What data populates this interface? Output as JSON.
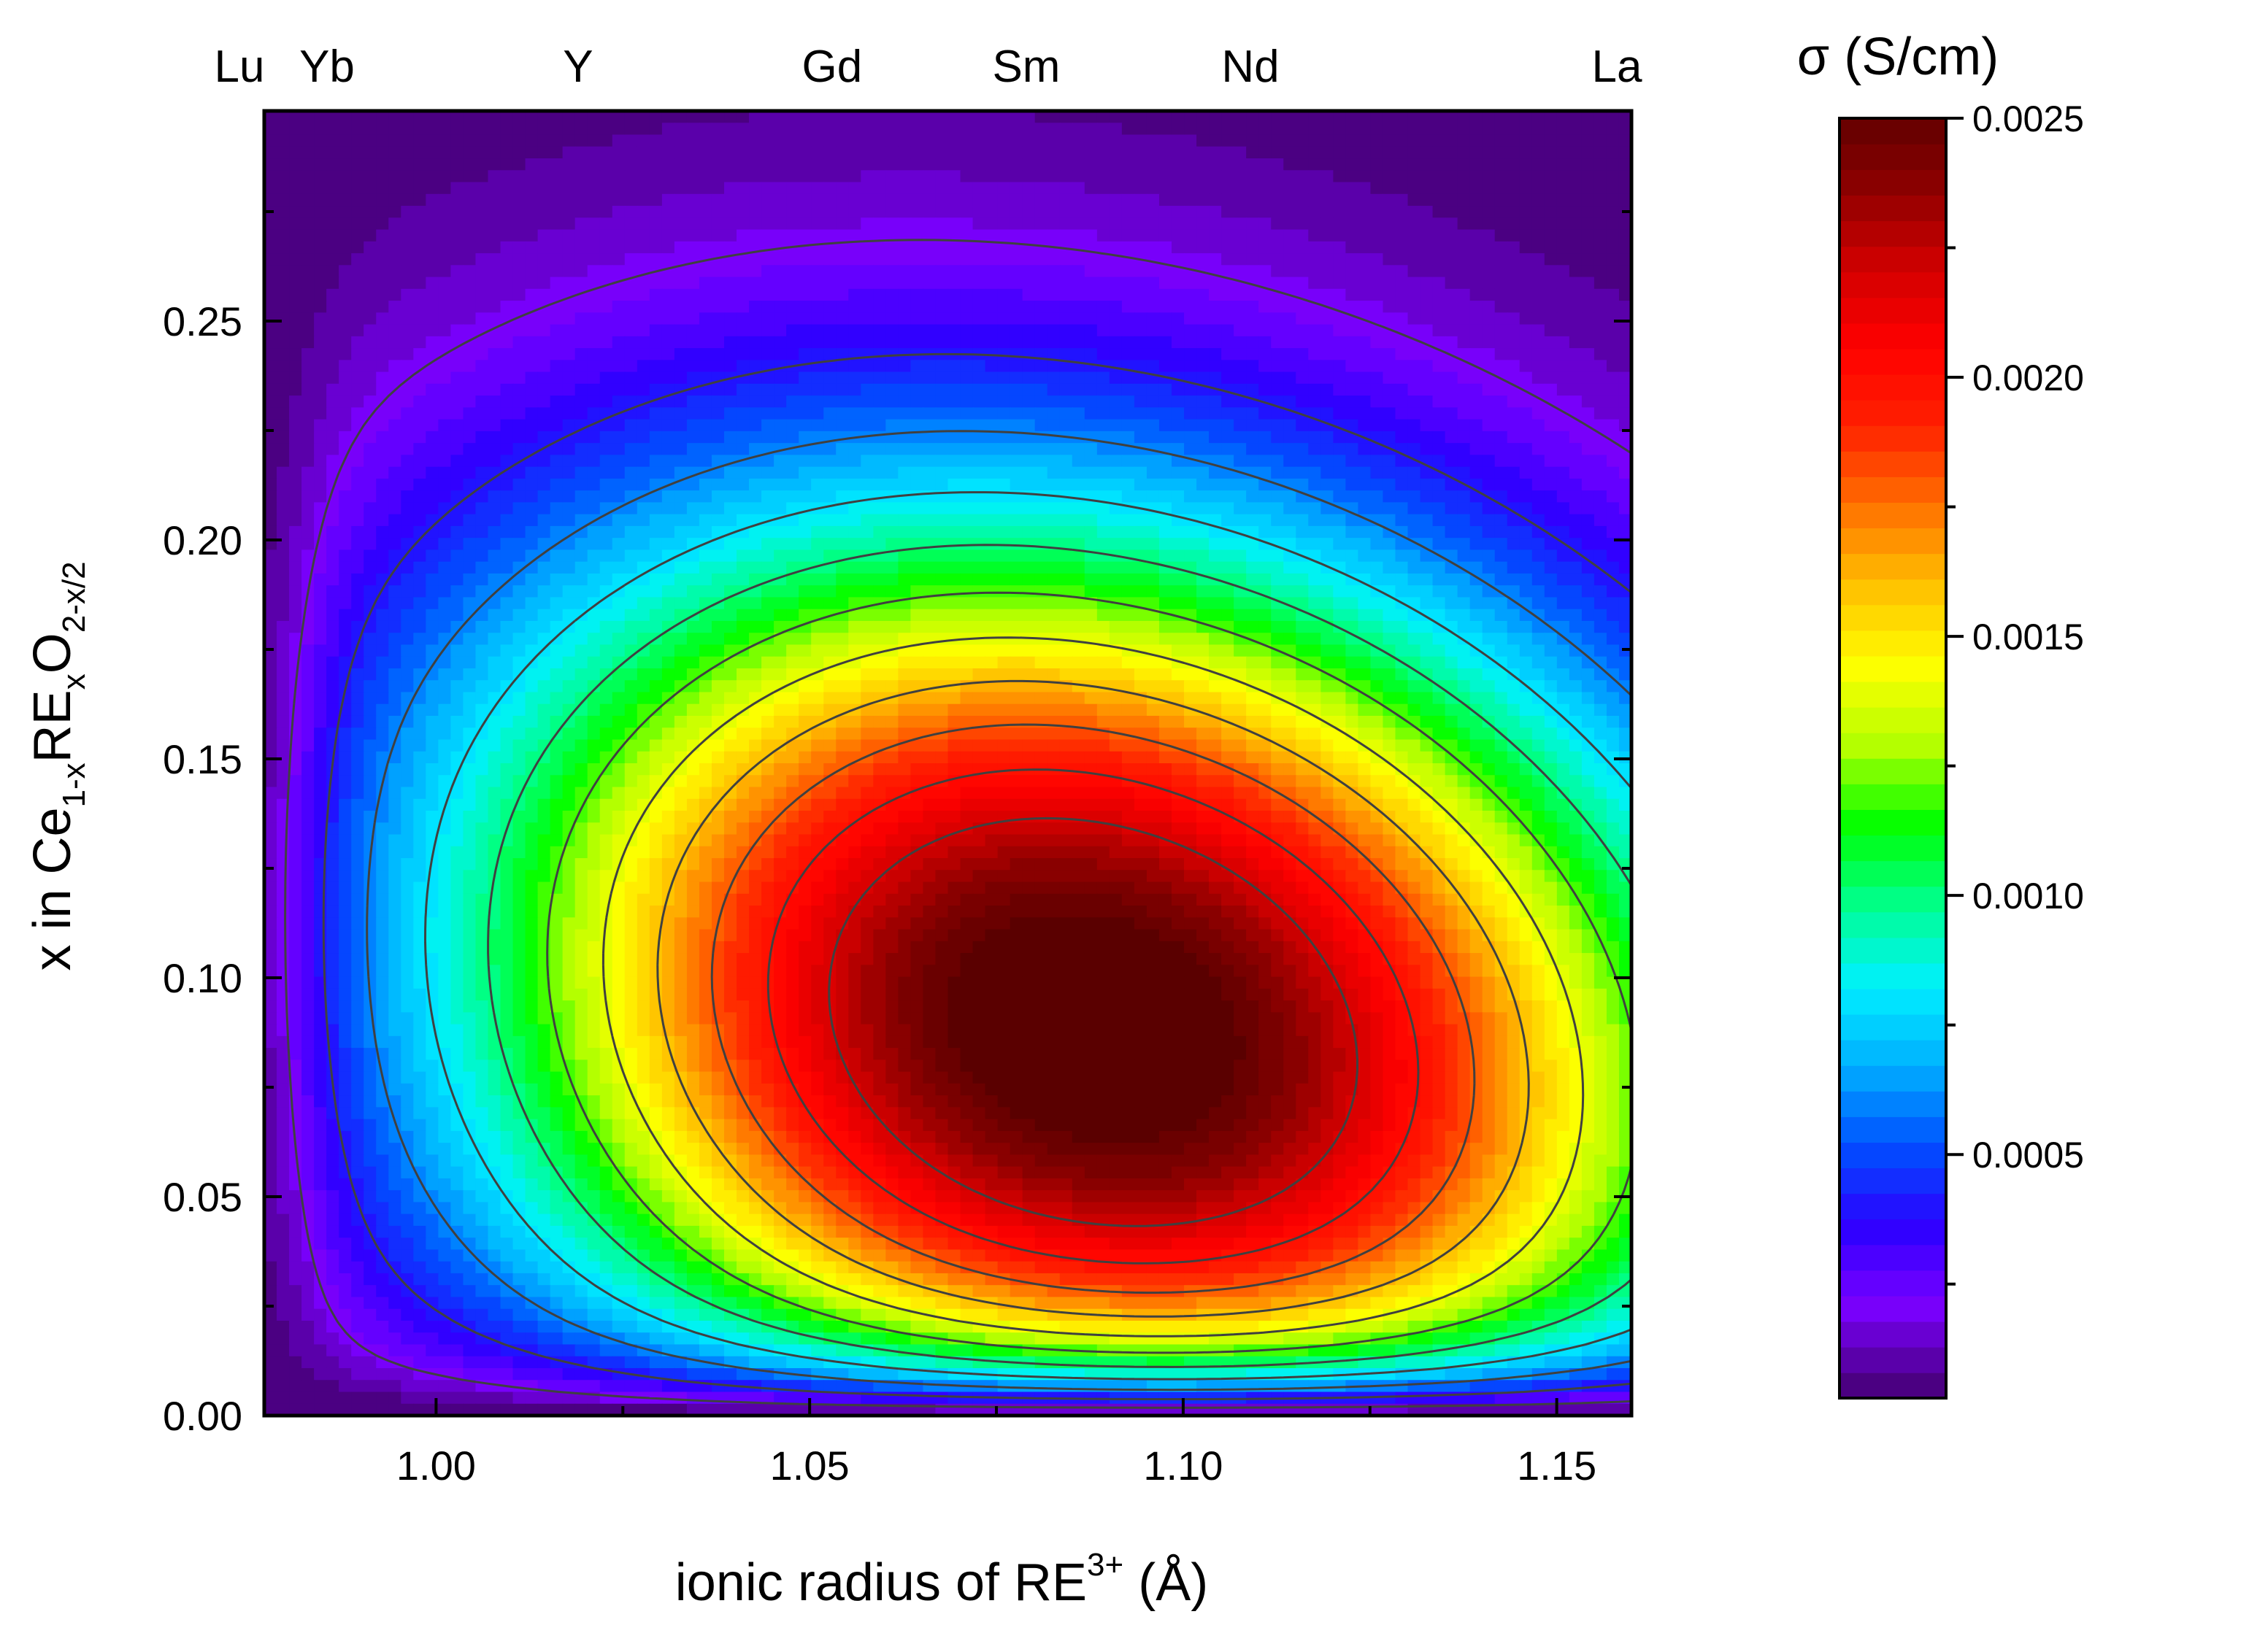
{
  "chart_data": {
    "type": "heatmap",
    "title": "",
    "xlabel": {
      "main": "ionic radius of RE",
      "superscript": "3+",
      "unit": " (Å)"
    },
    "ylabel": {
      "prefix": "x in Ce",
      "sub1": "1-x",
      "mid": "RE",
      "sub2": "x",
      "mid2": "O",
      "sub3": "2-x/2"
    },
    "xlim": [
      0.977,
      1.16
    ],
    "ylim": [
      0.0,
      0.298
    ],
    "x_ticks": [
      {
        "value": 1.0,
        "label": "1.00"
      },
      {
        "value": 1.05,
        "label": "1.05"
      },
      {
        "value": 1.1,
        "label": "1.10"
      },
      {
        "value": 1.15,
        "label": "1.15"
      }
    ],
    "y_ticks": [
      {
        "value": 0.0,
        "label": "0.00"
      },
      {
        "value": 0.05,
        "label": "0.05"
      },
      {
        "value": 0.1,
        "label": "0.10"
      },
      {
        "value": 0.15,
        "label": "0.15"
      },
      {
        "value": 0.2,
        "label": "0.20"
      },
      {
        "value": 0.25,
        "label": "0.25"
      }
    ],
    "top_axis_labels": [
      {
        "label": "Lu",
        "x": 0.9774
      },
      {
        "label": "Yb",
        "x": 0.985
      },
      {
        "label": "Y",
        "x": 1.019
      },
      {
        "label": "Gd",
        "x": 1.053
      },
      {
        "label": "Sm",
        "x": 1.079
      },
      {
        "label": "Nd",
        "x": 1.109
      },
      {
        "label": "La",
        "x": 1.16
      }
    ],
    "colorbar": {
      "title": "σ (S/cm)",
      "range": [
        3e-05,
        0.0025
      ],
      "ticks": [
        {
          "value": 0.0025,
          "label": "0.0025"
        },
        {
          "value": 0.002,
          "label": "0.0020"
        },
        {
          "value": 0.0015,
          "label": "0.0015"
        },
        {
          "value": 0.001,
          "label": "0.0010"
        },
        {
          "value": 0.0005,
          "label": "0.0005"
        }
      ],
      "colors": [
        "#4b0082",
        "#7a00ff",
        "#2b00ff",
        "#0050ff",
        "#00b0ff",
        "#00f0ff",
        "#00ff90",
        "#00ff00",
        "#b4ff00",
        "#ffff00",
        "#ffc000",
        "#ff7000",
        "#ff2000",
        "#ff0000",
        "#d00000",
        "#8b0000",
        "#5a0000"
      ]
    },
    "contour_levels": [
      0.0002,
      0.0004,
      0.0006,
      0.0008,
      0.001,
      0.0012,
      0.0014,
      0.0016,
      0.0018,
      0.002,
      0.0022
    ]
  }
}
